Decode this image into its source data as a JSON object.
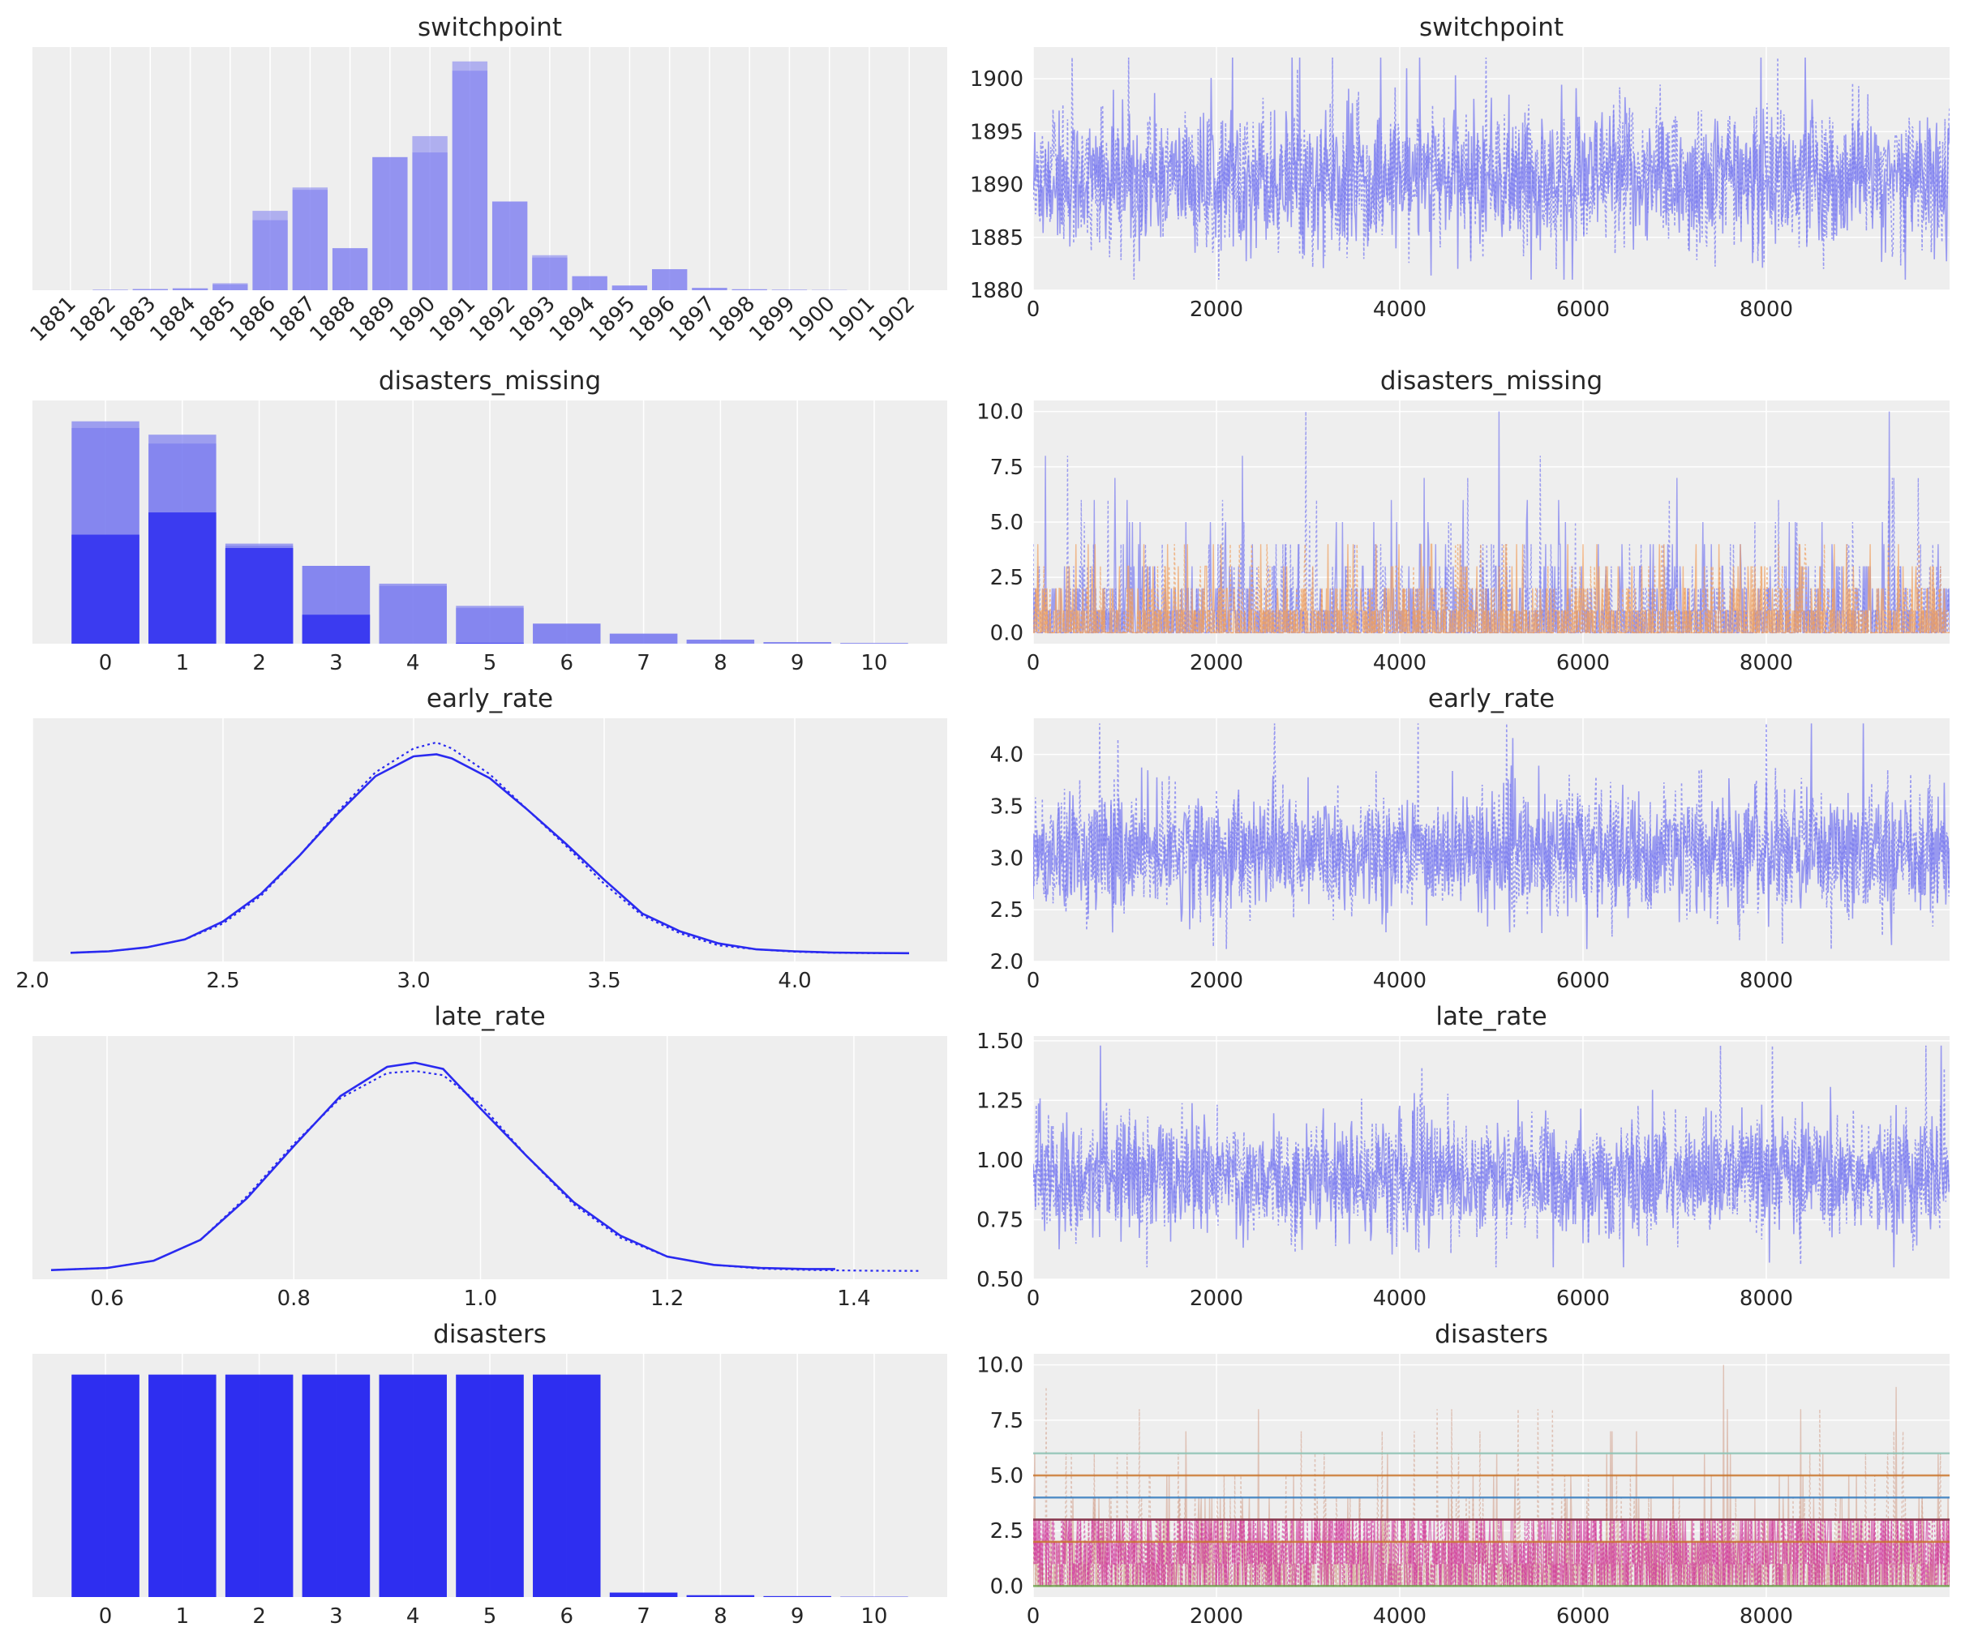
{
  "figure": {
    "background": "#ffffff",
    "panel_bg": "#eeeeee",
    "grid": "#ffffff"
  },
  "chart_data": [
    {
      "type": "bar",
      "title": "switchpoint",
      "column": "left",
      "categories": [
        "1881",
        "1882",
        "1883",
        "1884",
        "1885",
        "1886",
        "1887",
        "1888",
        "1889",
        "1890",
        "1891",
        "1892",
        "1893",
        "1894",
        "1895",
        "1896",
        "1897",
        "1898",
        "1899",
        "1900",
        "1901",
        "1902"
      ],
      "series": [
        {
          "values": [
            0,
            0.002,
            0.005,
            0.008,
            0.025,
            0.3,
            0.43,
            0.18,
            0.57,
            0.59,
            0.94,
            0.38,
            0.14,
            0.06,
            0.02,
            0.09,
            0.01,
            0.004,
            0.002,
            0.001,
            0,
            0
          ],
          "color": "#7b7cf0",
          "opacity": 0.55
        },
        {
          "values": [
            0,
            0.002,
            0.005,
            0.008,
            0.03,
            0.34,
            0.44,
            0.18,
            0.57,
            0.66,
            0.98,
            0.38,
            0.15,
            0.06,
            0.02,
            0.09,
            0.01,
            0.004,
            0.002,
            0.001,
            0,
            0
          ],
          "color": "#7b7cf0",
          "opacity": 0.55
        }
      ],
      "ylim": [
        0,
        1.0
      ],
      "yticks": false
    },
    {
      "type": "line",
      "title": "switchpoint",
      "column": "right",
      "style": "trace",
      "xlim": [
        0,
        10000
      ],
      "ylim": [
        1880,
        1903
      ],
      "xticks": [
        0,
        2000,
        4000,
        6000,
        8000
      ],
      "yticks": [
        1880,
        1885,
        1890,
        1895,
        1900
      ],
      "band": {
        "center": 1890.5,
        "spread": 3.2,
        "min": 1881,
        "max": 1902
      },
      "series": [
        {
          "color": "#7b7cf0"
        },
        {
          "color": "#7b7cf0"
        }
      ]
    },
    {
      "type": "bar",
      "title": "disasters_missing",
      "column": "left",
      "categories": [
        "0",
        "1",
        "2",
        "3",
        "4",
        "5",
        "6",
        "7",
        "8",
        "9",
        "10"
      ],
      "series": [
        {
          "values": [
            1.0,
            0.94,
            0.45,
            0.35,
            0.27,
            0.17,
            0.09,
            0.045,
            0.018,
            0.007,
            0.003
          ],
          "color": "#7b7cf0",
          "opacity": 0.7
        },
        {
          "values": [
            0.97,
            0.9,
            0.44,
            0.35,
            0.26,
            0.16,
            0.09,
            0.045,
            0.018,
            0.007,
            0.003
          ],
          "color": "#7b7cf0",
          "opacity": 0.7
        },
        {
          "values": [
            0.49,
            0.59,
            0.43,
            0.13,
            0,
            0.003,
            0,
            0,
            0,
            0,
            0
          ],
          "color": "#3a3af0",
          "opacity": 0.85
        },
        {
          "values": [
            0.49,
            0.59,
            0.43,
            0.13,
            0,
            0.003,
            0,
            0,
            0,
            0,
            0
          ],
          "color": "#3a3af0",
          "opacity": 0.85
        }
      ],
      "ylim": [
        0,
        1.05
      ],
      "yticks": false
    },
    {
      "type": "line",
      "title": "disasters_missing",
      "column": "right",
      "style": "trace-discrete",
      "xlim": [
        0,
        10000
      ],
      "ylim": [
        -0.5,
        10.5
      ],
      "xticks": [
        0,
        2000,
        4000,
        6000,
        8000
      ],
      "yticks": [
        0.0,
        2.5,
        5.0,
        7.5,
        10.0
      ],
      "series": [
        {
          "color": "#7b7cf0",
          "mean": 1.3,
          "max": 10
        },
        {
          "color": "#f0a060",
          "mean": 1.0,
          "max": 4
        }
      ]
    },
    {
      "type": "line",
      "title": "early_rate",
      "column": "left",
      "style": "kde",
      "xlim": [
        2.0,
        4.4
      ],
      "xticks": [
        2.0,
        2.5,
        3.0,
        3.5,
        4.0
      ],
      "x": [
        2.1,
        2.2,
        2.3,
        2.4,
        2.5,
        2.6,
        2.7,
        2.8,
        2.9,
        3.0,
        3.06,
        3.1,
        3.2,
        3.3,
        3.4,
        3.5,
        3.6,
        3.7,
        3.8,
        3.9,
        4.0,
        4.1,
        4.2,
        4.3
      ],
      "series": [
        {
          "values": [
            0.003,
            0.01,
            0.03,
            0.07,
            0.16,
            0.3,
            0.49,
            0.7,
            0.89,
            0.99,
            1.0,
            0.98,
            0.88,
            0.72,
            0.55,
            0.37,
            0.2,
            0.11,
            0.05,
            0.02,
            0.01,
            0.004,
            0.002,
            0.001
          ],
          "color": "#2a2af0",
          "dash": false
        },
        {
          "values": [
            0.003,
            0.01,
            0.03,
            0.07,
            0.15,
            0.29,
            0.49,
            0.71,
            0.91,
            1.03,
            1.06,
            1.03,
            0.9,
            0.72,
            0.54,
            0.35,
            0.19,
            0.1,
            0.04,
            0.02,
            0.008,
            0.003,
            0.001,
            0.001
          ],
          "color": "#2a2af0",
          "dash": true
        }
      ],
      "ylim": [
        0,
        1.1
      ]
    },
    {
      "type": "line",
      "title": "early_rate",
      "column": "right",
      "style": "trace",
      "xlim": [
        0,
        10000
      ],
      "ylim": [
        2.0,
        4.35
      ],
      "xticks": [
        0,
        2000,
        4000,
        6000,
        8000
      ],
      "yticks": [
        2.0,
        2.5,
        3.0,
        3.5,
        4.0
      ],
      "band": {
        "center": 3.05,
        "spread": 0.29,
        "min": 2.12,
        "max": 4.3
      },
      "series": [
        {
          "color": "#7b7cf0"
        },
        {
          "color": "#7b7cf0"
        }
      ]
    },
    {
      "type": "line",
      "title": "late_rate",
      "column": "left",
      "style": "kde",
      "xlim": [
        0.52,
        1.5
      ],
      "xticks": [
        0.6,
        0.8,
        1.0,
        1.2,
        1.4
      ],
      "x": [
        0.54,
        0.6,
        0.65,
        0.7,
        0.75,
        0.8,
        0.85,
        0.9,
        0.93,
        0.96,
        1.0,
        1.05,
        1.1,
        1.15,
        1.2,
        1.25,
        1.3,
        1.35,
        1.38,
        1.42,
        1.47
      ],
      "series": [
        {
          "values": [
            0.005,
            0.015,
            0.05,
            0.15,
            0.35,
            0.6,
            0.84,
            0.98,
            1.0,
            0.97,
            0.78,
            0.55,
            0.33,
            0.17,
            0.07,
            0.03,
            0.015,
            0.01,
            0.01,
            null,
            null
          ],
          "color": "#2a2af0",
          "dash": false
        },
        {
          "values": [
            0.005,
            0.015,
            0.05,
            0.15,
            0.36,
            0.61,
            0.83,
            0.95,
            0.96,
            0.94,
            0.8,
            0.55,
            0.32,
            0.16,
            0.07,
            0.03,
            0.012,
            0.006,
            0.004,
            0.002,
            0.001
          ],
          "color": "#2a2af0",
          "dash": true
        }
      ],
      "ylim": [
        0,
        1.05
      ]
    },
    {
      "type": "line",
      "title": "late_rate",
      "column": "right",
      "style": "trace",
      "xlim": [
        0,
        10000
      ],
      "ylim": [
        0.5,
        1.52
      ],
      "xticks": [
        0,
        2000,
        4000,
        6000,
        8000
      ],
      "yticks": [
        0.5,
        0.75,
        1.0,
        1.25,
        1.5
      ],
      "band": {
        "center": 0.93,
        "spread": 0.12,
        "min": 0.55,
        "max": 1.48
      },
      "series": [
        {
          "color": "#7b7cf0"
        },
        {
          "color": "#7b7cf0"
        }
      ]
    },
    {
      "type": "bar",
      "title": "disasters",
      "column": "left",
      "categories": [
        "0",
        "1",
        "2",
        "3",
        "4",
        "5",
        "6",
        "7",
        "8",
        "9",
        "10"
      ],
      "series": [
        {
          "values": [
            1.0,
            1.0,
            1.0,
            1.0,
            1.0,
            1.0,
            1.0,
            0.02,
            0.008,
            0.004,
            0.001
          ],
          "color": "#2a2af0",
          "opacity": 0.85
        },
        {
          "values": [
            1.0,
            1.0,
            1.0,
            1.0,
            1.0,
            1.0,
            1.0,
            0.02,
            0.008,
            0.004,
            0.001
          ],
          "color": "#2a2af0",
          "opacity": 0.85
        }
      ],
      "ylim": [
        0,
        1.05
      ],
      "yticks": false
    },
    {
      "type": "line",
      "title": "disasters",
      "column": "right",
      "style": "trace-multi",
      "xlim": [
        0,
        10000
      ],
      "ylim": [
        -0.5,
        10.5
      ],
      "xticks": [
        0,
        2000,
        4000,
        6000,
        8000
      ],
      "yticks": [
        0.0,
        2.5,
        5.0,
        7.5,
        10.0
      ],
      "series": [
        {
          "color": "#d4a390",
          "kind": "spiky",
          "max": 10
        },
        {
          "color": "#d0309a",
          "kind": "dense",
          "max": 3
        },
        {
          "color": "#c8762e",
          "kind": "level",
          "levels": [
            2,
            3,
            5
          ]
        },
        {
          "color": "#3a7fbf",
          "kind": "level",
          "levels": [
            4
          ]
        },
        {
          "color": "#8fc3b5",
          "kind": "level",
          "levels": [
            6
          ]
        },
        {
          "color": "#6aa04a",
          "kind": "level",
          "levels": [
            0
          ]
        },
        {
          "color": "#7a2a55",
          "kind": "level",
          "levels": [
            3
          ]
        }
      ]
    }
  ]
}
